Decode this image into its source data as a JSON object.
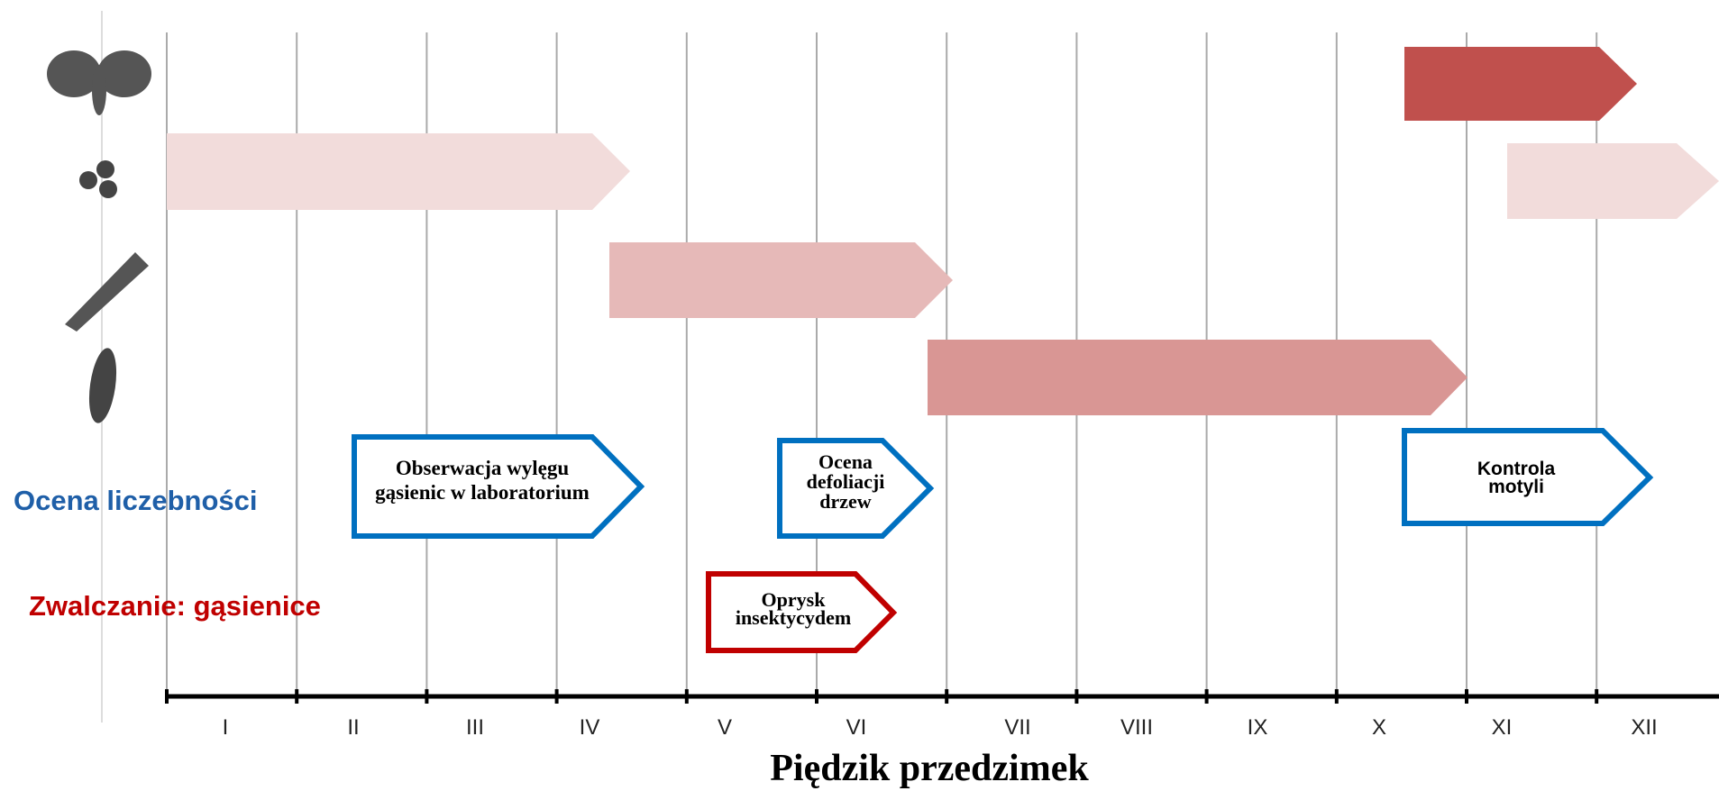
{
  "title": "Piędzik przedzimek",
  "months": [
    "I",
    "II",
    "III",
    "IV",
    "V",
    "VI",
    "VII",
    "VIII",
    "IX",
    "X",
    "XI",
    "XII"
  ],
  "row_labels": {
    "monitoring": "Ocena liczebności",
    "control": "Zwalczanie: gąsienice"
  },
  "boxes": [
    {
      "lines": [
        "Obserwacja wylęgu",
        "gąsienic w laboratorium"
      ]
    },
    {
      "lines": [
        "Ocena",
        "defoliacji",
        "drzew"
      ]
    },
    {
      "lines": [
        "Kontrola",
        "motyli"
      ]
    },
    {
      "lines": [
        "Oprysk",
        "insektycydem"
      ]
    }
  ]
}
